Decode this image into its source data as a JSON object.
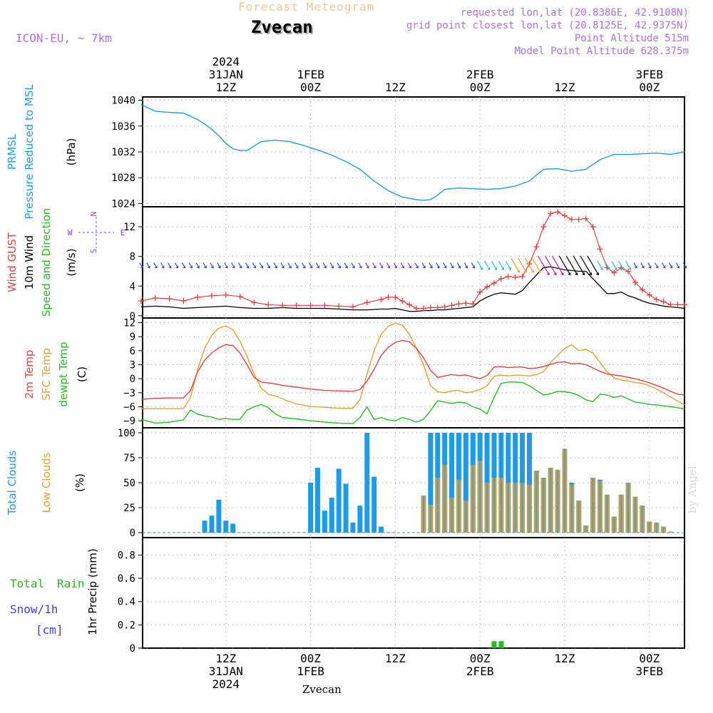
{
  "header": {
    "product": "Forecast Meteogram",
    "location": "Zvecan",
    "model": "ICON-EU, ~ 7km",
    "requested": "requested lon,lat (20.8386E, 42.9108N)",
    "gridpoint": "grid point closest lon,lat (20.8125E, 42.9375N)",
    "altitude": "Point Altitude 515m",
    "model_altitude": "Model Point Altitude 628.375m",
    "credit": "by Angel",
    "footer": "Zvecan"
  },
  "colors": {
    "pressure": "#1e9be8",
    "gust": "#e84040",
    "wind": "#000000",
    "t2m": "#e84040",
    "sfc": "#e8a030",
    "dewpt": "#20c020",
    "total_clouds": "#1e9be8",
    "low_clouds": "#c8a050",
    "rain": "#20c020",
    "snow": "#4040e0",
    "compass": "#9040e0"
  },
  "time_axis": {
    "top_labels": [
      {
        "h": 12,
        "lines": [
          "2024",
          "31JAN",
          "12Z"
        ]
      },
      {
        "h": 24,
        "lines": [
          "1FEB",
          "00Z"
        ]
      },
      {
        "h": 36,
        "lines": [
          "12Z"
        ]
      },
      {
        "h": 48,
        "lines": [
          "2FEB",
          "00Z"
        ]
      },
      {
        "h": 60,
        "lines": [
          "12Z"
        ]
      },
      {
        "h": 72,
        "lines": [
          "3FEB",
          "00Z"
        ]
      }
    ],
    "bottom_labels": [
      {
        "h": 12,
        "lines": [
          "12Z",
          "31JAN",
          "2024"
        ]
      },
      {
        "h": 24,
        "lines": [
          "00Z",
          "1FEB"
        ]
      },
      {
        "h": 36,
        "lines": [
          "12Z"
        ]
      },
      {
        "h": 48,
        "lines": [
          "00Z",
          "2FEB"
        ]
      },
      {
        "h": 60,
        "lines": [
          "12Z"
        ]
      },
      {
        "h": 72,
        "lines": [
          "00Z",
          "3FEB"
        ]
      }
    ]
  },
  "panels": {
    "pressure": {
      "labels": [
        "PRMSL",
        "Pressure Reduced to MSL"
      ],
      "unit": "(hPa)",
      "ticks": [
        "1040",
        "1036",
        "1032",
        "1028",
        "1024"
      ]
    },
    "wind": {
      "labels": [
        "Wind GUST",
        "10m Wind",
        "Speed and Direction"
      ],
      "unit": "(m/s)",
      "ticks": [
        "12",
        "8",
        "4",
        "0"
      ],
      "compass": {
        "n": "N",
        "s": "S",
        "w": "W",
        "e": "E"
      }
    },
    "temp": {
      "labels": [
        "2m Temp",
        "SFC Temp",
        "dewpt Temp"
      ],
      "unit": "(C)",
      "ticks": [
        "12",
        "9",
        "6",
        "3",
        "0",
        "−3",
        "−6",
        "−9"
      ]
    },
    "clouds": {
      "labels": [
        "Total Clouds",
        "Low Clouds"
      ],
      "unit": "(%)",
      "ticks": [
        "100",
        "75",
        "50",
        "25",
        "0"
      ]
    },
    "precip": {
      "labels": [
        "Total",
        "Rain",
        "Snow/1h",
        "[cm]"
      ],
      "unit": "1hr Precip (mm)",
      "ticks": [
        "0.8",
        "0.6",
        "0.4",
        "0.2",
        "0"
      ]
    }
  },
  "chart_data": [
    {
      "type": "line",
      "title": "PRMSL Pressure Reduced to MSL",
      "ylabel": "(hPa)",
      "ylim": [
        1023.5,
        1040.5
      ],
      "x_hours": [
        0,
        2,
        4,
        6,
        8,
        9,
        10,
        11,
        12,
        13,
        14,
        15,
        17,
        19,
        21,
        23,
        25,
        27,
        29,
        31,
        33,
        35,
        37,
        39,
        40,
        41,
        42,
        43,
        45,
        47,
        49,
        51,
        53,
        55,
        57,
        59,
        61,
        63,
        65,
        67,
        69,
        71,
        73,
        75,
        77
      ],
      "series": [
        {
          "name": "PRMSL",
          "values": [
            1039.3,
            1038.3,
            1038.1,
            1038.0,
            1037.0,
            1036.3,
            1035.5,
            1034.5,
            1033.3,
            1032.5,
            1032.2,
            1032.2,
            1033.6,
            1033.8,
            1033.6,
            1033.0,
            1032.3,
            1031.5,
            1030.5,
            1029.3,
            1027.5,
            1026.0,
            1025.0,
            1024.6,
            1024.5,
            1024.6,
            1025.3,
            1026.2,
            1026.4,
            1026.3,
            1026.2,
            1026.3,
            1026.7,
            1027.5,
            1029.3,
            1029.4,
            1029.0,
            1029.3,
            1030.8,
            1031.6,
            1031.6,
            1031.7,
            1031.8,
            1031.6,
            1032.0
          ]
        }
      ]
    },
    {
      "type": "line",
      "title": "Wind GUST / 10m Wind Speed and Direction",
      "ylabel": "(m/s)",
      "ylim": [
        -0.3,
        14.7
      ],
      "x_hours": [
        0,
        2,
        4,
        6,
        8,
        10,
        12,
        14,
        16,
        18,
        20,
        22,
        24,
        26,
        28,
        30,
        32,
        34,
        35,
        36,
        37,
        38,
        39,
        40,
        41,
        42,
        43,
        44,
        45,
        46,
        47,
        48,
        49,
        50,
        51,
        52,
        53,
        54,
        55,
        56,
        57,
        58,
        59,
        60,
        61,
        62,
        63,
        64,
        65,
        66,
        67,
        68,
        69,
        70,
        71,
        72,
        73,
        74,
        75,
        76,
        77
      ],
      "series": [
        {
          "name": "Wind GUST",
          "values": [
            2.0,
            2.4,
            2.3,
            2.0,
            2.5,
            2.7,
            2.8,
            2.6,
            1.8,
            1.5,
            1.4,
            1.4,
            1.4,
            1.4,
            1.3,
            1.2,
            1.8,
            2.2,
            2.5,
            2.5,
            2.0,
            1.5,
            1.0,
            1.0,
            1.1,
            1.1,
            1.2,
            1.4,
            1.6,
            1.7,
            1.6,
            3.2,
            3.9,
            4.4,
            5.0,
            5.3,
            5.2,
            5.3,
            7.0,
            9.3,
            12.0,
            13.8,
            14.0,
            13.5,
            13.0,
            13.0,
            13.1,
            12.0,
            9.0,
            6.5,
            5.8,
            6.5,
            6.0,
            4.5,
            3.5,
            2.8,
            2.2,
            1.9,
            1.5,
            1.5,
            1.5
          ]
        },
        {
          "name": "10m Wind",
          "values": [
            1.2,
            1.3,
            1.2,
            1.0,
            1.1,
            1.2,
            1.3,
            1.1,
            1.0,
            1.0,
            1.1,
            1.0,
            1.0,
            1.0,
            0.9,
            0.8,
            0.8,
            0.9,
            0.9,
            1.0,
            0.8,
            0.6,
            0.6,
            0.7,
            0.7,
            0.8,
            0.8,
            0.9,
            1.0,
            1.1,
            1.2,
            2.0,
            2.5,
            2.9,
            3.1,
            3.0,
            2.9,
            3.4,
            4.5,
            5.5,
            6.5,
            6.6,
            6.4,
            6.2,
            6.1,
            6.0,
            6.0,
            5.0,
            4.0,
            3.0,
            3.0,
            3.2,
            2.7,
            2.4,
            2.0,
            1.7,
            1.5,
            1.3,
            1.2,
            1.1,
            1.0
          ]
        }
      ]
    },
    {
      "type": "line",
      "title": "2m Temp / SFC Temp / dewpt Temp",
      "ylabel": "(C)",
      "ylim": [
        -10.5,
        13.0
      ],
      "x_hours": [
        0,
        2,
        4,
        6,
        7,
        8,
        9,
        10,
        11,
        12,
        13,
        14,
        15,
        16,
        17,
        18,
        19,
        20,
        22,
        24,
        26,
        28,
        30,
        31,
        32,
        33,
        34,
        35,
        36,
        37,
        38,
        39,
        40,
        41,
        42,
        43,
        44,
        45,
        46,
        47,
        48,
        49,
        50,
        51,
        52,
        53,
        54,
        55,
        56,
        57,
        58,
        59,
        60,
        61,
        62,
        63,
        64,
        65,
        66,
        67,
        68,
        69,
        70,
        71,
        72,
        73,
        74,
        75,
        76,
        77
      ],
      "series": [
        {
          "name": "2m Temp",
          "values": [
            -4.4,
            -4.2,
            -4.1,
            -4.1,
            -2.5,
            1.5,
            4.0,
            5.5,
            6.6,
            7.3,
            7.1,
            5.5,
            3.0,
            0.3,
            -0.7,
            -0.9,
            -1.1,
            -1.4,
            -1.8,
            -2.2,
            -2.5,
            -2.6,
            -2.7,
            -2.3,
            -0.5,
            2.0,
            5.0,
            6.7,
            7.8,
            8.2,
            7.9,
            6.5,
            4.5,
            1.8,
            0.3,
            0.6,
            0.9,
            0.7,
            0.8,
            0.4,
            0.0,
            0.7,
            2.5,
            2.6,
            2.4,
            2.5,
            2.5,
            2.2,
            2.3,
            2.6,
            3.1,
            3.5,
            3.6,
            3.2,
            3.3,
            3.0,
            2.3,
            1.6,
            1.0,
            0.8,
            0.6,
            0.3,
            0.0,
            -0.4,
            -0.9,
            -1.4,
            -2.0,
            -2.7,
            -3.3,
            -3.5
          ]
        },
        {
          "name": "SFC Temp",
          "values": [
            -6.4,
            -6.4,
            -6.4,
            -6.4,
            -4.0,
            2.0,
            6.5,
            9.3,
            10.8,
            11.3,
            10.5,
            8.0,
            4.8,
            1.0,
            -2.0,
            -3.3,
            -3.7,
            -4.3,
            -5.4,
            -5.9,
            -6.1,
            -6.3,
            -6.3,
            -4.5,
            1.0,
            6.0,
            9.5,
            11.2,
            11.9,
            11.5,
            9.5,
            6.5,
            3.0,
            -1.5,
            -2.8,
            -3.0,
            -2.6,
            -2.5,
            -3.0,
            -2.8,
            -2.3,
            -1.5,
            0.5,
            0.8,
            0.6,
            0.8,
            0.7,
            0.6,
            0.9,
            1.5,
            3.5,
            5.0,
            6.5,
            7.3,
            6.0,
            6.3,
            5.5,
            3.5,
            1.5,
            0.2,
            -0.3,
            -0.5,
            -0.8,
            -1.0,
            -1.5,
            -2.2,
            -3.0,
            -3.9,
            -4.8,
            -5.6
          ]
        },
        {
          "name": "dewpt Temp",
          "values": [
            -8.7,
            -9.5,
            -9.3,
            -8.8,
            -6.7,
            -7.6,
            -8.0,
            -8.2,
            -8.7,
            -8.5,
            -8.7,
            -8.7,
            -6.7,
            -6.0,
            -5.5,
            -6.2,
            -7.5,
            -8.3,
            -8.6,
            -9.0,
            -9.3,
            -9.5,
            -9.6,
            -8.3,
            -6.0,
            -8.7,
            -8.3,
            -8.8,
            -9.0,
            -8.3,
            -8.7,
            -9.3,
            -8.7,
            -6.8,
            -4.7,
            -5.0,
            -5.3,
            -5.0,
            -5.2,
            -6.0,
            -6.5,
            -7.5,
            -4.0,
            -1.0,
            -0.7,
            -0.7,
            -0.8,
            -1.5,
            -2.5,
            -3.5,
            -3.2,
            -2.7,
            -2.8,
            -3.0,
            -3.6,
            -4.5,
            -4.9,
            -3.3,
            -3.5,
            -4.0,
            -3.7,
            -4.3,
            -5.0,
            -5.2,
            -5.5,
            -5.6,
            -5.8,
            -6.0,
            -6.2,
            -6.5
          ]
        }
      ]
    },
    {
      "type": "bar",
      "title": "Total Clouds / Low Clouds",
      "ylabel": "(%)",
      "ylim": [
        -5,
        105
      ],
      "categories": [
        9,
        10,
        11,
        12,
        13,
        24,
        25,
        26,
        27,
        28,
        29,
        30,
        31,
        32,
        33,
        34,
        35,
        36,
        39,
        40,
        41,
        42,
        43,
        44,
        45,
        46,
        47,
        48,
        49,
        50,
        51,
        52,
        53,
        54,
        55,
        56,
        57,
        58,
        59,
        60,
        61,
        62,
        63,
        64,
        65,
        66,
        67,
        68,
        69,
        70,
        71,
        72,
        73,
        74,
        75,
        76
      ],
      "series": [
        {
          "name": "Total Clouds",
          "values": [
            12,
            17,
            33,
            12,
            9,
            50,
            65,
            22,
            35,
            64,
            49,
            10,
            27,
            100,
            56,
            6,
            0,
            0,
            0,
            37,
            100,
            100,
            100,
            100,
            100,
            100,
            100,
            100,
            100,
            100,
            100,
            100,
            100,
            100,
            100,
            62,
            55,
            65,
            62,
            84,
            50,
            32,
            7,
            55,
            53,
            38,
            16,
            38,
            50,
            36,
            27,
            11,
            10,
            6,
            1,
            0
          ]
        },
        {
          "name": "Low Clouds",
          "values": [
            0,
            0,
            0,
            0,
            0,
            0,
            0,
            0,
            0,
            0,
            0,
            0,
            0,
            0,
            0,
            0,
            0,
            0,
            0,
            37,
            28,
            55,
            68,
            35,
            53,
            32,
            68,
            72,
            50,
            55,
            55,
            50,
            50,
            50,
            48,
            62,
            55,
            65,
            63,
            84,
            48,
            32,
            7,
            55,
            52,
            38,
            16,
            38,
            50,
            36,
            27,
            11,
            10,
            6,
            1,
            0
          ]
        }
      ]
    },
    {
      "type": "bar",
      "title": "1hr Precip",
      "ylabel": "1hr Precip (mm)",
      "ylim": [
        0,
        0.95
      ],
      "categories": [
        50,
        51
      ],
      "series": [
        {
          "name": "Total Rain",
          "values": [
            0.06,
            0.06
          ]
        },
        {
          "name": "Snow/1h",
          "values": [
            0,
            0
          ]
        }
      ]
    }
  ]
}
